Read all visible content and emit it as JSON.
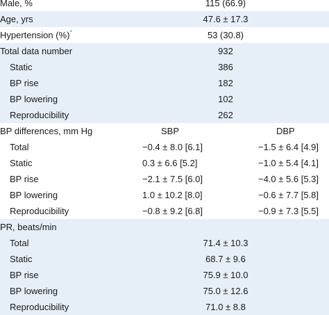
{
  "rows": [
    {
      "label": "Male, %",
      "value": "115 (66.9)"
    },
    {
      "label": "Age, yrs",
      "value": "47.6 ± 17.3"
    },
    {
      "label": "Hypertension (%)",
      "mark": "*",
      "value": "53 (30.8)"
    },
    {
      "label": "Total data number",
      "value": "932"
    },
    {
      "label": "Static",
      "value": "386"
    },
    {
      "label": "BP rise",
      "value": "182"
    },
    {
      "label": "BP lowering",
      "value": "102"
    },
    {
      "label": "Reproducibility",
      "value": "262"
    }
  ],
  "bp_differences": {
    "label": "BP differences, mm Hg",
    "sbp_header": "SBP",
    "dbp_header": "DBP",
    "rows": [
      {
        "label": "Total",
        "sbp": "−0.4 ± 8.0 [6.1]",
        "dbp": "−1.5 ± 6.4 [4.9]"
      },
      {
        "label": "Static",
        "sbp": "0.3 ± 6.6 [5.2]",
        "dbp": "−1.0 ± 5.4 [4.1]"
      },
      {
        "label": "BP rise",
        "sbp": "−2.1 ± 7.5 [6.0]",
        "dbp": "−4.0 ± 5.6 [5.3]"
      },
      {
        "label": "BP lowering",
        "sbp": "1.0 ± 10.2 [8.0]",
        "dbp": "−0.6 ± 7.7 [5.8]"
      },
      {
        "label": "Reproducibility",
        "sbp": "−0.8 ± 9.2 [6.8]",
        "dbp": "−0.9 ± 7.3 [5.5]"
      }
    ]
  },
  "pr": {
    "label": "PR, beats/min",
    "rows": [
      {
        "label": "Total",
        "value": "71.4 ± 10.3"
      },
      {
        "label": "Static",
        "value": "68.7 ± 9.6"
      },
      {
        "label": "BP rise",
        "value": "75.9 ± 10.0"
      },
      {
        "label": "BP lowering",
        "value": "75.0 ± 12.6"
      },
      {
        "label": "Reproducibility",
        "value": "71.0 ± 8.8"
      }
    ]
  }
}
